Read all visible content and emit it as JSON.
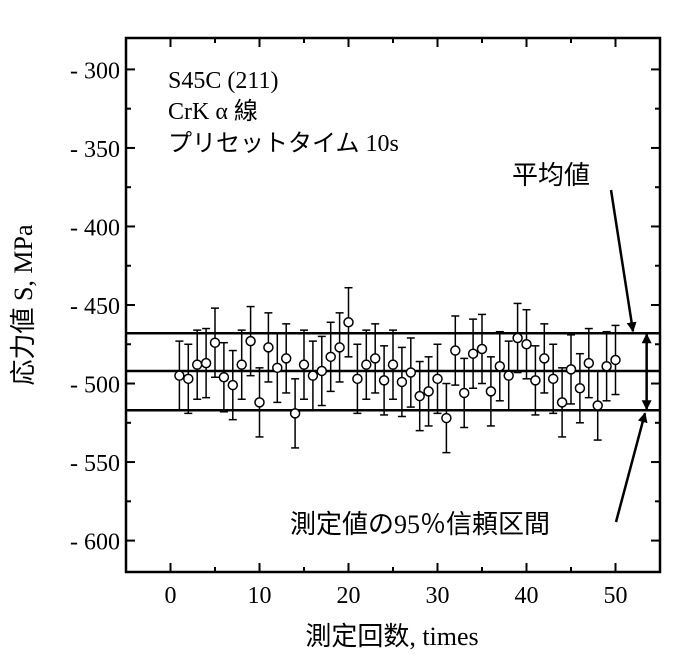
{
  "chart_data": {
    "type": "scatter",
    "annotations": [
      "S45C (211)",
      "CrK α 線",
      "プリセットタイム 10s"
    ],
    "xlabel": "測定回数, times",
    "ylabel": "応力値 S, MPa",
    "xlim": [
      -5,
      55
    ],
    "ylim": [
      -620,
      -280
    ],
    "y_axis_inverted": false,
    "xticks": [
      0,
      10,
      20,
      30,
      40,
      50
    ],
    "xtick_labels": [
      "0",
      "10",
      "20",
      "30",
      "40",
      "50"
    ],
    "yticks": [
      -300,
      -350,
      -400,
      -450,
      -500,
      -550,
      -600
    ],
    "ytick_labels": [
      "- 300",
      "- 350",
      "- 400",
      "- 450",
      "- 500",
      "- 550",
      "- 600"
    ],
    "grid": false,
    "series": [
      {
        "x": [
          1,
          2,
          3,
          4,
          5,
          6,
          7,
          8,
          9,
          10,
          11,
          12,
          13,
          14,
          15,
          16,
          17,
          18,
          19,
          20,
          21,
          22,
          23,
          24,
          25,
          26,
          27,
          28,
          29,
          30,
          31,
          32,
          33,
          34,
          35,
          36,
          37,
          38,
          39,
          40,
          41,
          42,
          43,
          44,
          45,
          46,
          47,
          48,
          49,
          50
        ],
        "y": [
          -495,
          -497,
          -488,
          -487,
          -474,
          -496,
          -501,
          -488,
          -473,
          -512,
          -477,
          -490,
          -484,
          -519,
          -488,
          -495,
          -492,
          -483,
          -477,
          -461,
          -497,
          -488,
          -484,
          -498,
          -488,
          -499,
          -493,
          -508,
          -505,
          -497,
          -522,
          -479,
          -506,
          -481,
          -478,
          -505,
          -489,
          -495,
          -471,
          -475,
          -498,
          -484,
          -497,
          -512,
          -491,
          -503,
          -487,
          -514,
          -489,
          -485
        ],
        "error": [
          22,
          22,
          22,
          22,
          22,
          22,
          22,
          22,
          22,
          22,
          22,
          22,
          22,
          22,
          22,
          22,
          22,
          22,
          22,
          22,
          22,
          22,
          22,
          22,
          22,
          22,
          22,
          22,
          22,
          22,
          22,
          22,
          22,
          22,
          22,
          22,
          22,
          22,
          22,
          22,
          22,
          22,
          22,
          22,
          22,
          22,
          22,
          22,
          22,
          22
        ]
      }
    ],
    "reference_lines": {
      "mean": -492,
      "ci_upper": -468,
      "ci_lower": -517
    },
    "mean_label": "平均値",
    "ci_label": "測定値の95％信頼区間"
  }
}
